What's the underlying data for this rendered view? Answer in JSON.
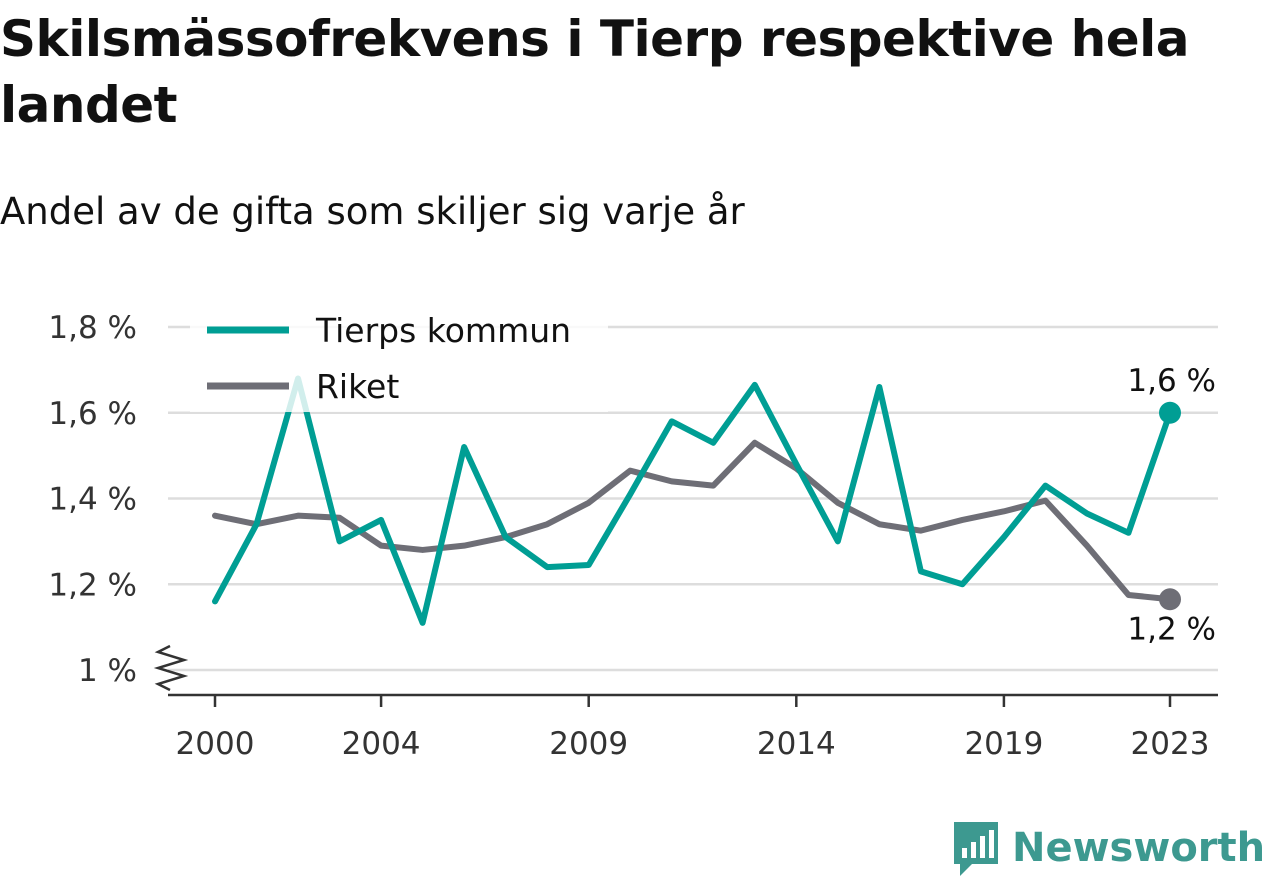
{
  "header": {
    "title": "Skilsmässofrekvens i Tierp respektive hela landet",
    "subtitle": "Andel av de gifta som skiljer sig varje år"
  },
  "brand": {
    "name": "Newsworthy",
    "icon": "newsworthy-logo-icon",
    "color": "#3d9990"
  },
  "chart_data": {
    "type": "line",
    "x": [
      2000,
      2001,
      2002,
      2003,
      2004,
      2005,
      2006,
      2007,
      2008,
      2009,
      2010,
      2011,
      2012,
      2013,
      2014,
      2015,
      2016,
      2017,
      2018,
      2019,
      2020,
      2021,
      2022,
      2023
    ],
    "x_ticks": [
      "2000",
      "2004",
      "2009",
      "2014",
      "2019",
      "2023"
    ],
    "y_ticks": [
      "1 %",
      "1,2 %",
      "1,4 %",
      "1,6 %",
      "1,8 %"
    ],
    "y_tick_values": [
      1.0,
      1.2,
      1.4,
      1.6,
      1.8
    ],
    "ylim": [
      1.0,
      1.8
    ],
    "grid": true,
    "legend_position": "top-left",
    "series": [
      {
        "name": "Tierps kommun",
        "color": "#009e94",
        "values": [
          1.16,
          1.34,
          1.68,
          1.3,
          1.35,
          1.11,
          1.52,
          1.31,
          1.24,
          1.245,
          1.41,
          1.58,
          1.53,
          1.665,
          1.48,
          1.3,
          1.66,
          1.23,
          1.2,
          1.31,
          1.43,
          1.365,
          1.32,
          1.6
        ],
        "end_label": "1,6 %"
      },
      {
        "name": "Riket",
        "color": "#6e6e76",
        "values": [
          1.36,
          1.34,
          1.36,
          1.355,
          1.29,
          1.28,
          1.29,
          1.31,
          1.34,
          1.39,
          1.465,
          1.44,
          1.43,
          1.53,
          1.47,
          1.39,
          1.34,
          1.325,
          1.35,
          1.37,
          1.395,
          1.29,
          1.175,
          1.165
        ],
        "end_label": "1,2 %"
      }
    ]
  }
}
